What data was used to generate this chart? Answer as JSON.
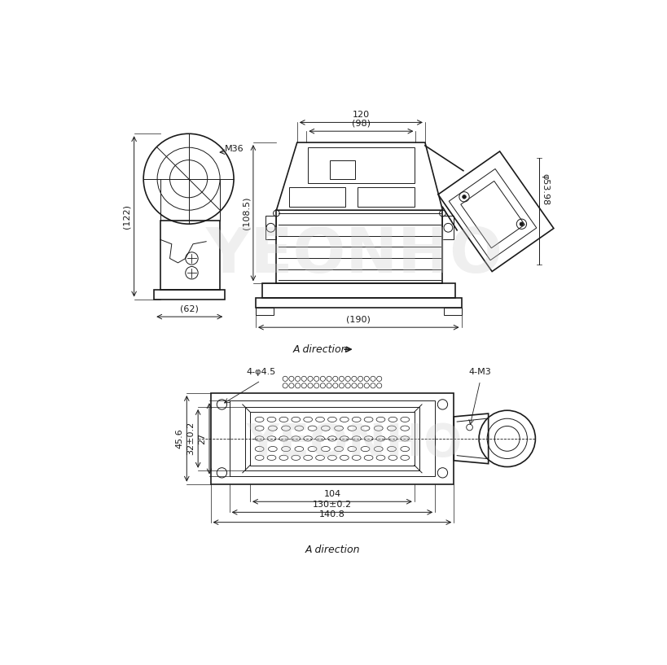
{
  "bg_color": "#ffffff",
  "line_color": "#1a1a1a",
  "watermark_color": "#cccccc",
  "watermark_text": "YEONHO",
  "fig_width": 8.2,
  "fig_height": 8.17,
  "dims": {
    "top_120": "120",
    "top_98": "(98)",
    "top_1085": "(108.5)",
    "top_190": "(190)",
    "top_122": "(122)",
    "top_62": "(62)",
    "top_M36": "M36",
    "top_phi": "φ53.98",
    "bot_456": "45.6",
    "bot_32": "32±0.2",
    "bot_27": "27",
    "bot_104": "104",
    "bot_130": "130±0.2",
    "bot_1408": "140.8",
    "bot_4phi": "4-φ4.5",
    "bot_4M3": "4-M3"
  }
}
